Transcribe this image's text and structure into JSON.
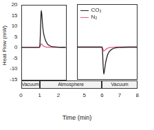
{
  "chart_data": [
    {
      "type": "line",
      "ylabel": "Heat Flow (mW)",
      "x": [
        0,
        0.5,
        0.95,
        1.0,
        1.03,
        1.06,
        1.08,
        1.1,
        1.15,
        1.2,
        1.3,
        1.4,
        1.5,
        1.7,
        2.0,
        2.4
      ],
      "xlim": [
        0,
        2.4
      ],
      "xticks": [
        0,
        1,
        2
      ],
      "ylim": [
        -15,
        20
      ],
      "yticks": [
        -15,
        -10,
        -5,
        0,
        5,
        10,
        15,
        20
      ],
      "grid": false,
      "series": [
        {
          "name": "CO₂",
          "color": "#222222",
          "values": [
            0,
            0,
            0,
            0.3,
            5,
            13,
            17.2,
            16.5,
            11,
            7,
            3.5,
            1.8,
            0.9,
            0.3,
            0.1,
            0
          ]
        },
        {
          "name": "N₂",
          "color": "#e8578a",
          "values": [
            0,
            0,
            0,
            0.05,
            0.6,
            1.4,
            1.7,
            1.6,
            1.1,
            0.6,
            0.25,
            0.1,
            0.05,
            0,
            0,
            0
          ]
        }
      ]
    },
    {
      "type": "line",
      "x": [
        4.6,
        5,
        5.5,
        6.0,
        6.03,
        6.06,
        6.1,
        6.13,
        6.2,
        6.3,
        6.4,
        6.6,
        6.8,
        7,
        7.5,
        8
      ],
      "xlim": [
        4.6,
        8
      ],
      "xticks": [
        5,
        6,
        7,
        8
      ],
      "ylim": [
        -15,
        20
      ],
      "yticks": [
        -15,
        -10,
        -5,
        0,
        5,
        10,
        15,
        20
      ],
      "grid": false,
      "tick_labels": "x",
      "legend": "upper left",
      "series": [
        {
          "name": "CO₂",
          "color": "#222222",
          "values": [
            0,
            0,
            0,
            0,
            -2,
            -8,
            -12.5,
            -11.5,
            -7.5,
            -4,
            -2.2,
            -0.8,
            -0.3,
            -0.1,
            0,
            0
          ]
        },
        {
          "name": "N₂",
          "color": "#e8578a",
          "values": [
            0,
            0,
            0,
            0,
            -0.4,
            -1.2,
            -1.8,
            -1.7,
            -1.1,
            -0.6,
            -0.3,
            -0.1,
            0,
            0,
            0,
            0
          ]
        }
      ]
    }
  ],
  "x_label": "Time (min)",
  "phases": [
    {
      "label": "Vacuum",
      "from": 0,
      "to": 1
    },
    {
      "label": "Atmosphere",
      "from": 1,
      "to": 6
    },
    {
      "label": "Vacuum",
      "from": 6,
      "to": 8
    }
  ]
}
